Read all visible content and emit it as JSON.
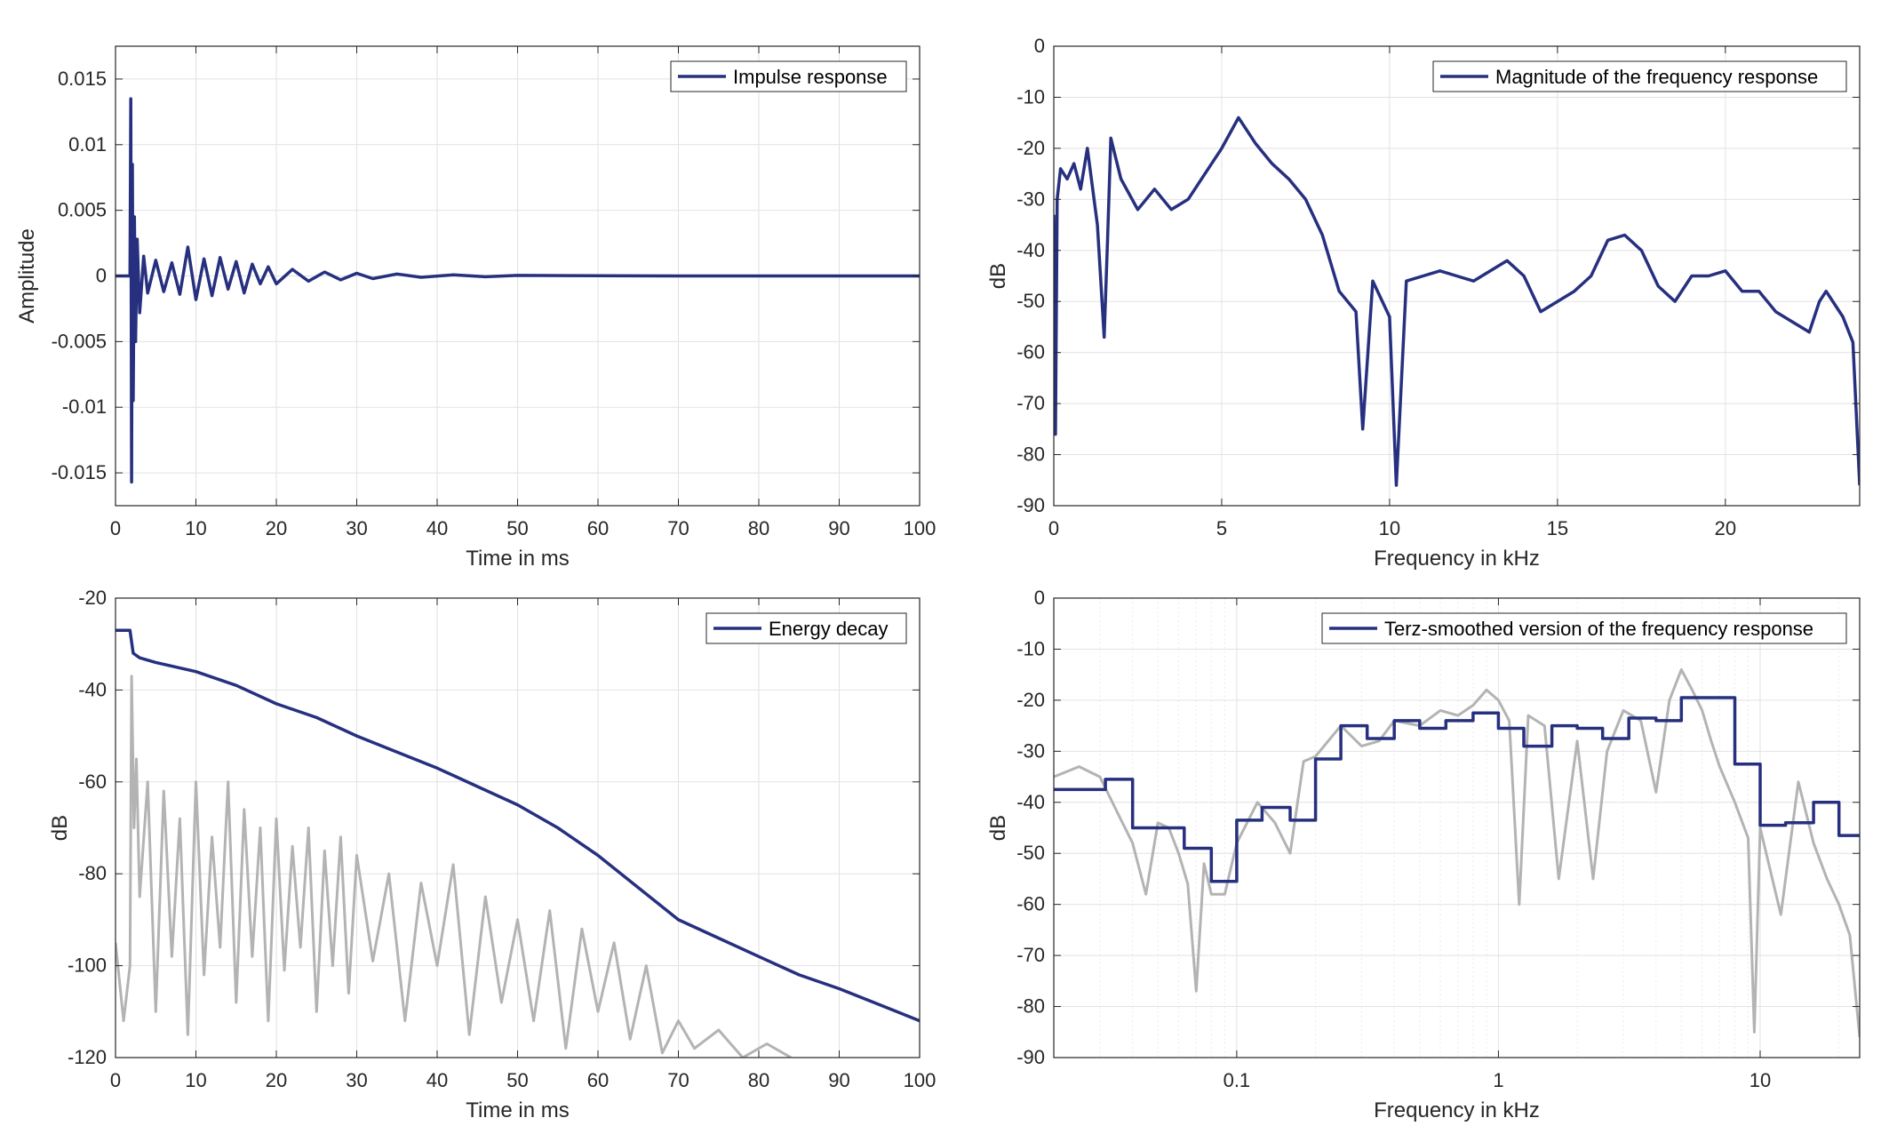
{
  "colors": {
    "series_blue": "#26307f",
    "series_gray": "#b3b3b3",
    "grid": "#e2e2e2",
    "axes": "#262626",
    "background": "#ffffff"
  },
  "chart_data": [
    {
      "id": "impulse",
      "type": "line",
      "xlabel": "Time in ms",
      "ylabel": "Amplitude",
      "xlim": [
        0,
        100
      ],
      "ylim": [
        -0.0175,
        0.0175
      ],
      "x_scale": "linear",
      "xticks": [
        0,
        10,
        20,
        30,
        40,
        50,
        60,
        70,
        80,
        90,
        100
      ],
      "xtick_labels": [
        "0",
        "10",
        "20",
        "30",
        "40",
        "50",
        "60",
        "70",
        "80",
        "90",
        "100"
      ],
      "yticks": [
        -0.015,
        -0.01,
        -0.005,
        0,
        0.005,
        0.01,
        0.015
      ],
      "ytick_labels": [
        "-0.015",
        "-0.01",
        "-0.005",
        "0",
        "0.005",
        "0.01",
        "0.015"
      ],
      "grid": true,
      "legend_position": "top-right",
      "series": [
        {
          "name": "Impulse response",
          "color": "#26307f",
          "kind": "main",
          "x": [
            0,
            1.8,
            1.9,
            2.0,
            2.1,
            2.2,
            2.35,
            2.5,
            2.7,
            3.0,
            3.5,
            4,
            5,
            6,
            7,
            8,
            9,
            10,
            11,
            12,
            13,
            14,
            15,
            16,
            17,
            18,
            19,
            20,
            22,
            24,
            26,
            28,
            30,
            32,
            35,
            38,
            42,
            46,
            50,
            60,
            70,
            80,
            90,
            100
          ],
          "y": [
            0,
            0,
            0.0135,
            -0.0157,
            0.0085,
            -0.0095,
            0.0045,
            -0.005,
            0.0028,
            -0.0028,
            0.0015,
            -0.0013,
            0.0012,
            -0.0012,
            0.001,
            -0.0014,
            0.0022,
            -0.0018,
            0.0013,
            -0.0015,
            0.0014,
            -0.001,
            0.0011,
            -0.0013,
            0.0009,
            -0.0006,
            0.0007,
            -0.0006,
            0.0005,
            -0.0004,
            0.0003,
            -0.0003,
            0.0002,
            -0.0002,
            0.00015,
            -0.0001,
            8e-05,
            -6e-05,
            4e-05,
            2e-05,
            0,
            0,
            0,
            0
          ]
        }
      ]
    },
    {
      "id": "magnitude",
      "type": "line",
      "xlabel": "Frequency in kHz",
      "ylabel": "dB",
      "xlim": [
        0,
        24
      ],
      "ylim": [
        -90,
        0
      ],
      "x_scale": "linear",
      "xticks": [
        0,
        5,
        10,
        15,
        20
      ],
      "xtick_labels": [
        "0",
        "5",
        "10",
        "15",
        "20"
      ],
      "yticks": [
        0,
        -10,
        -20,
        -30,
        -40,
        -50,
        -60,
        -70,
        -80,
        -90
      ],
      "ytick_labels": [
        "0",
        "-10",
        "-20",
        "-30",
        "-40",
        "-50",
        "-60",
        "-70",
        "-80",
        "-90"
      ],
      "grid": true,
      "legend_position": "top-right",
      "series": [
        {
          "name": "Magnitude of the frequency response",
          "color": "#26307f",
          "kind": "main",
          "x": [
            0,
            0.05,
            0.1,
            0.2,
            0.4,
            0.6,
            0.8,
            1.0,
            1.3,
            1.5,
            1.6,
            1.7,
            2.0,
            2.5,
            3.0,
            3.5,
            4.0,
            4.5,
            5.0,
            5.5,
            6.0,
            6.5,
            7.0,
            7.5,
            8.0,
            8.5,
            9.0,
            9.2,
            9.5,
            10.0,
            10.2,
            10.5,
            11.0,
            11.5,
            12.0,
            12.5,
            13.0,
            13.5,
            14.0,
            14.5,
            15.0,
            15.5,
            16.0,
            16.5,
            17.0,
            17.5,
            18.0,
            18.5,
            19.0,
            19.5,
            20.0,
            20.5,
            21.0,
            21.5,
            22.0,
            22.5,
            22.8,
            23.0,
            23.5,
            23.8,
            24.0
          ],
          "y": [
            -33,
            -76,
            -30,
            -24,
            -26,
            -23,
            -28,
            -20,
            -35,
            -57,
            -38,
            -18,
            -26,
            -32,
            -28,
            -32,
            -30,
            -25,
            -20,
            -14,
            -19,
            -23,
            -26,
            -30,
            -37,
            -48,
            -52,
            -75,
            -46,
            -53,
            -86,
            -46,
            -45,
            -44,
            -45,
            -46,
            -44,
            -42,
            -45,
            -52,
            -50,
            -48,
            -45,
            -38,
            -37,
            -40,
            -47,
            -50,
            -45,
            -45,
            -44,
            -48,
            -48,
            -52,
            -54,
            -56,
            -50,
            -48,
            -53,
            -58,
            -86
          ]
        }
      ]
    },
    {
      "id": "energy",
      "type": "line",
      "xlabel": "Time in ms",
      "ylabel": "dB",
      "xlim": [
        0,
        100
      ],
      "ylim": [
        -120,
        -20
      ],
      "x_scale": "linear",
      "xticks": [
        0,
        10,
        20,
        30,
        40,
        50,
        60,
        70,
        80,
        90,
        100
      ],
      "xtick_labels": [
        "0",
        "10",
        "20",
        "30",
        "40",
        "50",
        "60",
        "70",
        "80",
        "90",
        "100"
      ],
      "yticks": [
        -20,
        -40,
        -60,
        -80,
        -100,
        -120
      ],
      "ytick_labels": [
        "-20",
        "-40",
        "-60",
        "-80",
        "-100",
        "-120"
      ],
      "grid": true,
      "legend_position": "top-right",
      "series": [
        {
          "name": "",
          "color": "#b3b3b3",
          "kind": "background",
          "x": [
            0,
            1,
            1.8,
            2.0,
            2.3,
            2.6,
            3,
            4,
            5,
            6,
            7,
            8,
            9,
            10,
            11,
            12,
            13,
            14,
            15,
            16,
            17,
            18,
            19,
            20,
            21,
            22,
            23,
            24,
            25,
            26,
            27,
            28,
            29,
            30,
            32,
            34,
            36,
            38,
            40,
            42,
            44,
            46,
            48,
            50,
            52,
            54,
            56,
            58,
            60,
            62,
            64,
            66,
            68,
            70,
            72,
            75,
            78,
            81,
            84
          ],
          "y": [
            -95,
            -112,
            -100,
            -37,
            -70,
            -55,
            -85,
            -60,
            -110,
            -62,
            -98,
            -68,
            -115,
            -60,
            -102,
            -72,
            -96,
            -60,
            -108,
            -66,
            -98,
            -70,
            -112,
            -68,
            -101,
            -74,
            -96,
            -70,
            -110,
            -75,
            -100,
            -72,
            -106,
            -76,
            -99,
            -80,
            -112,
            -82,
            -100,
            -78,
            -115,
            -85,
            -108,
            -90,
            -112,
            -88,
            -118,
            -92,
            -110,
            -95,
            -116,
            -100,
            -119,
            -112,
            -118,
            -114,
            -120,
            -117,
            -120
          ]
        },
        {
          "name": "Energy decay",
          "color": "#26307f",
          "kind": "main",
          "x": [
            0,
            1.8,
            2.2,
            3,
            5,
            10,
            15,
            20,
            25,
            30,
            35,
            40,
            45,
            50,
            55,
            60,
            65,
            70,
            75,
            80,
            85,
            90,
            95,
            100
          ],
          "y": [
            -27,
            -27,
            -32,
            -33,
            -34,
            -36,
            -39,
            -43,
            -46,
            -50,
            -53.5,
            -57,
            -61,
            -65,
            -70,
            -76,
            -83,
            -90,
            -94,
            -98,
            -102,
            -105,
            -108.5,
            -112
          ]
        }
      ]
    },
    {
      "id": "terz",
      "type": "line",
      "xlabel": "Frequency in kHz",
      "ylabel": "dB",
      "xlim": [
        0.02,
        24
      ],
      "ylim": [
        -90,
        0
      ],
      "x_scale": "log",
      "xticks": [
        0.1,
        1,
        10
      ],
      "xtick_labels": [
        "0.1",
        "1",
        "10"
      ],
      "yticks": [
        0,
        -10,
        -20,
        -30,
        -40,
        -50,
        -60,
        -70,
        -80,
        -90
      ],
      "ytick_labels": [
        "0",
        "-10",
        "-20",
        "-30",
        "-40",
        "-50",
        "-60",
        "-70",
        "-80",
        "-90"
      ],
      "grid": true,
      "legend_position": "top-right",
      "series": [
        {
          "name": "",
          "color": "#b3b3b3",
          "kind": "background",
          "x": [
            0.02,
            0.025,
            0.03,
            0.035,
            0.04,
            0.045,
            0.05,
            0.055,
            0.06,
            0.065,
            0.07,
            0.075,
            0.08,
            0.09,
            0.1,
            0.12,
            0.14,
            0.16,
            0.18,
            0.2,
            0.25,
            0.3,
            0.35,
            0.4,
            0.5,
            0.6,
            0.7,
            0.8,
            0.9,
            1.0,
            1.1,
            1.2,
            1.3,
            1.5,
            1.7,
            2.0,
            2.3,
            2.6,
            3.0,
            3.5,
            4.0,
            4.5,
            5.0,
            5.5,
            6.0,
            6.5,
            7.0,
            8.0,
            9.0,
            9.5,
            10,
            12,
            14,
            16,
            18,
            20,
            22,
            24
          ],
          "y": [
            -35,
            -33,
            -35,
            -42,
            -48,
            -58,
            -44,
            -45,
            -50,
            -56,
            -77,
            -52,
            -58,
            -58,
            -48,
            -40,
            -44,
            -50,
            -32,
            -31,
            -25,
            -29,
            -28,
            -24,
            -25,
            -22,
            -23,
            -21,
            -18,
            -20,
            -24,
            -60,
            -23,
            -25,
            -55,
            -28,
            -55,
            -30,
            -22,
            -24,
            -38,
            -20,
            -14,
            -18,
            -22,
            -28,
            -33,
            -40,
            -47,
            -85,
            -45,
            -62,
            -36,
            -48,
            -55,
            -60,
            -66,
            -86
          ]
        },
        {
          "name": "Terz-smoothed version of the frequency response",
          "color": "#26307f",
          "kind": "main",
          "step": true,
          "x": [
            0.02,
            0.0315,
            0.04,
            0.05,
            0.063,
            0.08,
            0.1,
            0.125,
            0.16,
            0.2,
            0.25,
            0.315,
            0.4,
            0.5,
            0.63,
            0.8,
            1.0,
            1.25,
            1.6,
            2.0,
            2.5,
            3.15,
            4.0,
            5.0,
            6.3,
            8.0,
            10,
            12.5,
            16,
            20,
            24
          ],
          "y": [
            -37.5,
            -35.5,
            -45,
            -45,
            -49,
            -55.5,
            -43.5,
            -41,
            -43.5,
            -31.5,
            -25,
            -27.5,
            -24,
            -25.5,
            -24,
            -22.5,
            -25.5,
            -29,
            -25,
            -25.5,
            -27.5,
            -23.5,
            -24,
            -19.5,
            -19.5,
            -32.5,
            -44.5,
            -44,
            -40,
            -46.5,
            -46.5
          ]
        }
      ]
    }
  ]
}
